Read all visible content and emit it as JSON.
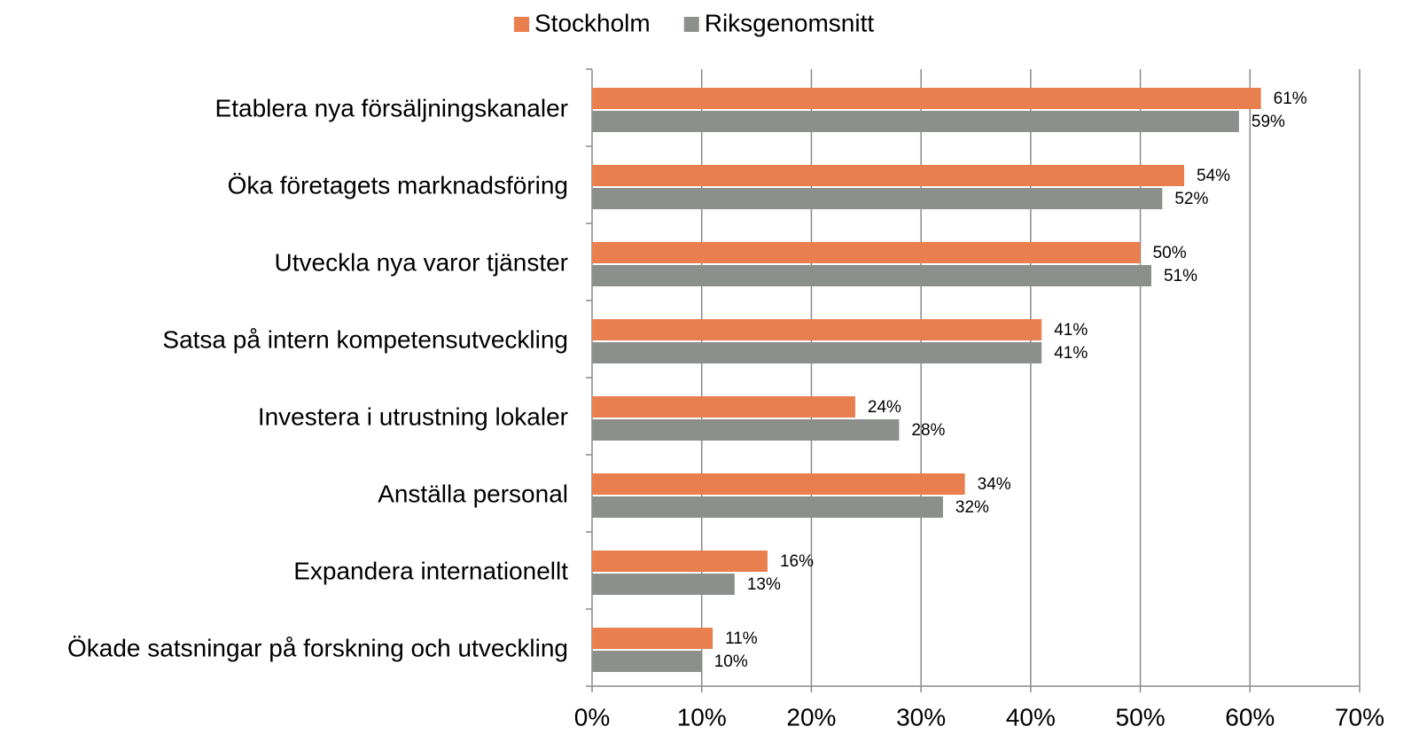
{
  "chart_data": {
    "type": "barh",
    "categories": [
      "Etablera nya försäljningskanaler",
      "Öka företagets marknadsföring",
      "Utveckla nya varor tjänster",
      "Satsa på intern kompetensutveckling",
      "Investera i utrustning lokaler",
      "Anställa personal",
      "Expandera internationellt",
      "Ökade satsningar på forskning och utveckling"
    ],
    "series": [
      {
        "name": "Stockholm",
        "color": "#e97f4f",
        "values": [
          61,
          54,
          50,
          41,
          24,
          34,
          16,
          11
        ],
        "value_labels": [
          "61%",
          "54%",
          "50%",
          "41%",
          "24%",
          "34%",
          "16%",
          "11%"
        ]
      },
      {
        "name": "Riksgenomsnitt",
        "color": "#8c908d",
        "values": [
          59,
          52,
          51,
          41,
          28,
          32,
          13,
          10
        ],
        "value_labels": [
          "59%",
          "52%",
          "51%",
          "41%",
          "28%",
          "32%",
          "13%",
          "10%"
        ]
      }
    ],
    "xlim": [
      0,
      70
    ],
    "xticks": [
      {
        "value": 0,
        "label": "0%"
      },
      {
        "value": 10,
        "label": "10%"
      },
      {
        "value": 20,
        "label": "20%"
      },
      {
        "value": 30,
        "label": "30%"
      },
      {
        "value": 40,
        "label": "40%"
      },
      {
        "value": 50,
        "label": "50%"
      },
      {
        "value": 60,
        "label": "60%"
      },
      {
        "value": 70,
        "label": "70%"
      }
    ],
    "grid": true,
    "legend": "top"
  }
}
